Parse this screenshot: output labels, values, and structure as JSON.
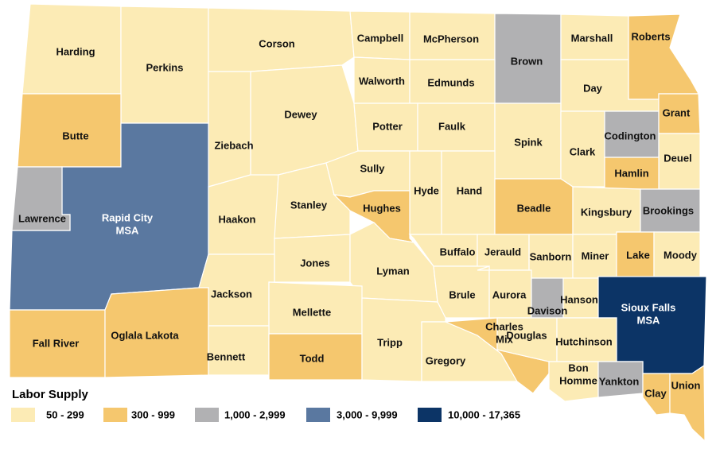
{
  "map": {
    "regions": [
      {
        "label": "Harding",
        "color": "#fcebb5"
      },
      {
        "label": "Perkins",
        "color": "#fcebb5"
      },
      {
        "label": "Corson",
        "color": "#fcebb5"
      },
      {
        "label": "Campbell",
        "color": "#fcebb5"
      },
      {
        "label": "McPherson",
        "color": "#fcebb5"
      },
      {
        "label": "Brown",
        "color": "#b1b1b3"
      },
      {
        "label": "Marshall",
        "color": "#fcebb5"
      },
      {
        "label": "Roberts",
        "color": "#f5c76e"
      },
      {
        "label": "Day",
        "color": "#fcebb5"
      },
      {
        "label": "Walworth",
        "color": "#fcebb5"
      },
      {
        "label": "Edmunds",
        "color": "#fcebb5"
      },
      {
        "label": "Butte",
        "color": "#f5c76e"
      },
      {
        "label": "Dewey",
        "color": "#fcebb5"
      },
      {
        "label": "Ziebach",
        "color": "#fcebb5"
      },
      {
        "label": [
          "Rapid City",
          "MSA"
        ],
        "color": "#5a78a0"
      },
      {
        "label": "Lawrence",
        "color": "#b1b1b3"
      },
      {
        "label": "Haakon",
        "color": "#fcebb5"
      },
      {
        "label": "Stanley",
        "color": "#fcebb5"
      },
      {
        "label": "Potter",
        "color": "#fcebb5"
      },
      {
        "label": "Faulk",
        "color": "#fcebb5"
      },
      {
        "label": "Spink",
        "color": "#fcebb5"
      },
      {
        "label": "Clark",
        "color": "#fcebb5"
      },
      {
        "label": "Codington",
        "color": "#b1b1b3"
      },
      {
        "label": "Grant",
        "color": "#f5c76e"
      },
      {
        "label": "Deuel",
        "color": "#fcebb5"
      },
      {
        "label": "Hamlin",
        "color": "#f5c76e"
      },
      {
        "label": "Sully",
        "color": "#fcebb5"
      },
      {
        "label": "Hyde",
        "color": "#fcebb5"
      },
      {
        "label": "Hand",
        "color": "#fcebb5"
      },
      {
        "label": "Beadle",
        "color": "#f5c76e"
      },
      {
        "label": "Kingsbury",
        "color": "#fcebb5"
      },
      {
        "label": "Brookings",
        "color": "#b1b1b3"
      },
      {
        "label": "Hughes",
        "color": "#f5c76e"
      },
      {
        "label": "Jones",
        "color": "#fcebb5"
      },
      {
        "label": "Lyman",
        "color": "#fcebb5"
      },
      {
        "label": "Buffalo",
        "color": "#fcebb5"
      },
      {
        "label": "Jerauld",
        "color": "#fcebb5"
      },
      {
        "label": "Sanborn",
        "color": "#fcebb5"
      },
      {
        "label": "Miner",
        "color": "#fcebb5"
      },
      {
        "label": "Lake",
        "color": "#f5c76e"
      },
      {
        "label": "Moody",
        "color": "#fcebb5"
      },
      {
        "label": "Jackson",
        "color": "#fcebb5"
      },
      {
        "label": "Mellette",
        "color": "#fcebb5"
      },
      {
        "label": "Brule",
        "color": "#fcebb5"
      },
      {
        "label": "Aurora",
        "color": "#fcebb5"
      },
      {
        "label": "Davison",
        "color": "#b1b1b3"
      },
      {
        "label": "Hanson",
        "color": "#fcebb5"
      },
      {
        "label": [
          "Sioux Falls",
          "MSA"
        ],
        "color": "#0c3466"
      },
      {
        "label": "Fall River",
        "color": "#f5c76e"
      },
      {
        "label": "Oglala Lakota",
        "color": "#f5c76e"
      },
      {
        "label": "Bennett",
        "color": "#fcebb5"
      },
      {
        "label": "Todd",
        "color": "#f5c76e"
      },
      {
        "label": "Tripp",
        "color": "#fcebb5"
      },
      {
        "label": "Gregory",
        "color": "#fcebb5"
      },
      {
        "label": [
          "Charles",
          "Mix"
        ],
        "color": "#f5c76e"
      },
      {
        "label": "Douglas",
        "color": "#fcebb5"
      },
      {
        "label": "Hutchinson",
        "color": "#fcebb5"
      },
      {
        "label": [
          "Bon",
          "Homme"
        ],
        "color": "#fcebb5"
      },
      {
        "label": "Yankton",
        "color": "#b1b1b3"
      },
      {
        "label": "Clay",
        "color": "#f5c76e"
      },
      {
        "label": "Union",
        "color": "#f5c76e"
      }
    ],
    "legend": {
      "title": "Labor Supply",
      "items": [
        {
          "label": "50 - 299",
          "color": "#fcebb5"
        },
        {
          "label": "300 - 999",
          "color": "#f5c76e"
        },
        {
          "label": "1,000 - 2,999",
          "color": "#b1b1b3"
        },
        {
          "label": "3,000 - 9,999",
          "color": "#5a78a0"
        },
        {
          "label": "10,000 - 17,365",
          "color": "#0c3466"
        }
      ]
    }
  }
}
